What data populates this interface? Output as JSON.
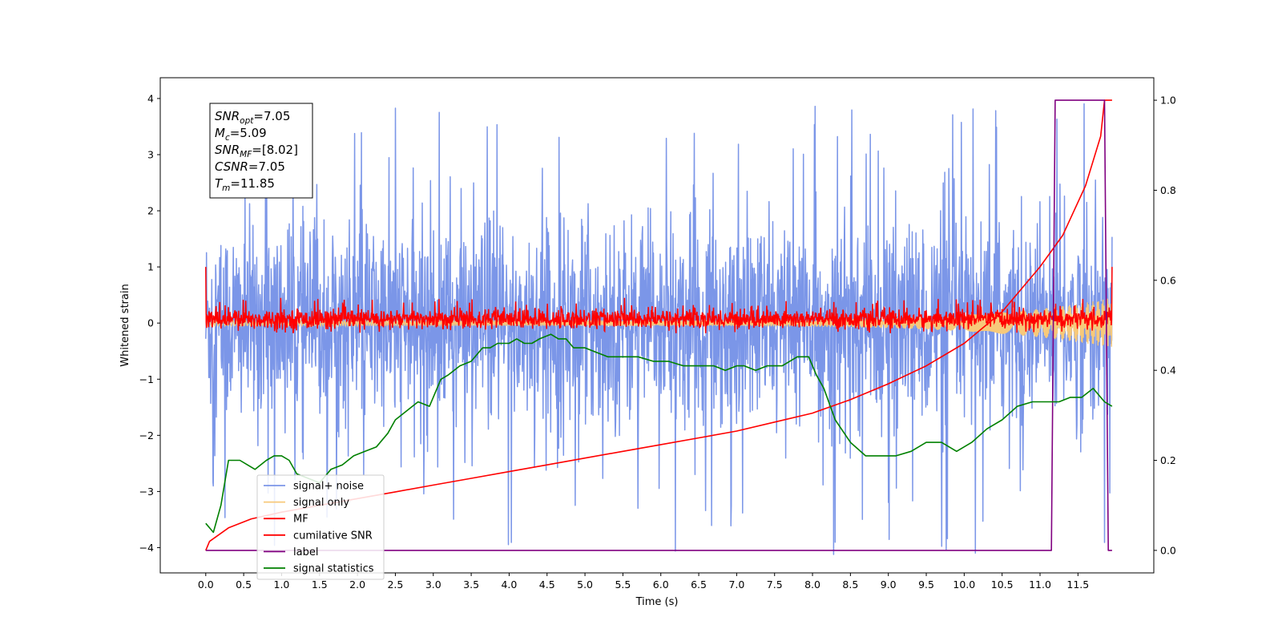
{
  "chart_data": {
    "type": "line",
    "title": "",
    "xlabel": "Time (s)",
    "ylabel": "Whitened strain",
    "y2label": "",
    "xlim": [
      -0.6,
      12.5
    ],
    "ylim": [
      -4.45,
      4.37
    ],
    "y2lim": [
      -0.05,
      1.05
    ],
    "x_ticks": [
      "0.0",
      "0.5",
      "1.0",
      "1.5",
      "2.0",
      "2.5",
      "3.0",
      "3.5",
      "4.0",
      "4.5",
      "5.0",
      "5.5",
      "6.0",
      "6.5",
      "7.0",
      "7.5",
      "8.0",
      "8.5",
      "9.0",
      "9.5",
      "10.0",
      "10.5",
      "11.0",
      "11.5"
    ],
    "y_ticks": [
      "4",
      "3",
      "2",
      "1",
      "0",
      "−1",
      "−2",
      "−3",
      "−4"
    ],
    "y2_ticks": [
      "1.0",
      "0.8",
      "0.6",
      "0.4",
      "0.2",
      "0.0"
    ],
    "grid": false,
    "legend_position": "lower-left",
    "annotation": {
      "lines": [
        {
          "base": "SNR",
          "sub": "opt",
          "value": "=7.05"
        },
        {
          "base": "M",
          "sub": "c",
          "value": "=5.09"
        },
        {
          "base": "SNR",
          "sub": "MF",
          "value": "=[8.02]"
        },
        {
          "base": "CSNR",
          "sub": "",
          "value": "=7.05"
        },
        {
          "base": "T",
          "sub": "m",
          "value": "=11.85"
        }
      ]
    },
    "series": [
      {
        "name": "signal+ noise",
        "color": "#7b96e8",
        "kind": "noise",
        "envelope_upper": 2.0,
        "envelope_lower": -2.1,
        "peak_max": 3.95,
        "trough_min": -4.15,
        "x_range": [
          0.0,
          11.95
        ]
      },
      {
        "name": "signal only",
        "color": "#f7c97a",
        "kind": "chirp",
        "amplitude_start": 0.05,
        "amplitude_end": 0.45,
        "x_range": [
          0.0,
          11.95
        ]
      },
      {
        "name": "MF",
        "color": "#ff0000",
        "kind": "noise",
        "envelope_upper": 0.3,
        "envelope_lower": -0.15,
        "peak_max": 0.45,
        "x_range": [
          0.0,
          11.95
        ],
        "endpoints_y": 1.0
      },
      {
        "name": "cumilative SNR",
        "color": "#ff0000",
        "axis": "right",
        "x": [
          0.0,
          0.05,
          0.3,
          0.6,
          1.0,
          1.5,
          2.0,
          2.5,
          3.0,
          3.5,
          4.0,
          4.5,
          5.0,
          5.5,
          6.0,
          6.5,
          7.0,
          7.5,
          8.0,
          8.5,
          9.0,
          9.5,
          10.0,
          10.5,
          11.0,
          11.3,
          11.6,
          11.8,
          11.85,
          11.95
        ],
        "values": [
          0.0,
          0.02,
          0.05,
          0.07,
          0.085,
          0.1,
          0.115,
          0.13,
          0.145,
          0.16,
          0.175,
          0.19,
          0.205,
          0.22,
          0.235,
          0.25,
          0.265,
          0.285,
          0.305,
          0.335,
          0.37,
          0.41,
          0.46,
          0.53,
          0.63,
          0.7,
          0.81,
          0.92,
          1.0,
          1.0
        ]
      },
      {
        "name": "label",
        "color": "#800080",
        "axis": "right",
        "x": [
          0.0,
          11.15,
          11.2,
          11.85,
          11.9,
          11.95
        ],
        "values": [
          0.0,
          0.0,
          1.0,
          1.0,
          0.0,
          0.0
        ]
      },
      {
        "name": "signal statistics",
        "color": "#008000",
        "axis": "right",
        "x": [
          0.0,
          0.1,
          0.2,
          0.3,
          0.45,
          0.55,
          0.65,
          0.8,
          0.9,
          1.0,
          1.1,
          1.2,
          1.35,
          1.5,
          1.65,
          1.8,
          1.95,
          2.1,
          2.25,
          2.4,
          2.5,
          2.65,
          2.8,
          2.95,
          3.1,
          3.2,
          3.35,
          3.5,
          3.65,
          3.75,
          3.85,
          4.0,
          4.1,
          4.2,
          4.3,
          4.4,
          4.55,
          4.65,
          4.75,
          4.85,
          5.0,
          5.15,
          5.3,
          5.5,
          5.7,
          5.9,
          6.1,
          6.3,
          6.5,
          6.7,
          6.85,
          7.0,
          7.1,
          7.25,
          7.4,
          7.6,
          7.8,
          7.95,
          8.05,
          8.15,
          8.3,
          8.5,
          8.7,
          8.9,
          9.1,
          9.3,
          9.5,
          9.7,
          9.9,
          10.1,
          10.3,
          10.5,
          10.7,
          10.9,
          11.1,
          11.25,
          11.4,
          11.55,
          11.7,
          11.85,
          11.95
        ],
        "values": [
          0.06,
          0.04,
          0.1,
          0.2,
          0.2,
          0.19,
          0.18,
          0.2,
          0.21,
          0.21,
          0.2,
          0.17,
          0.16,
          0.15,
          0.18,
          0.19,
          0.21,
          0.22,
          0.23,
          0.26,
          0.29,
          0.31,
          0.33,
          0.32,
          0.38,
          0.39,
          0.41,
          0.42,
          0.45,
          0.45,
          0.46,
          0.46,
          0.47,
          0.46,
          0.46,
          0.47,
          0.48,
          0.47,
          0.47,
          0.45,
          0.45,
          0.44,
          0.43,
          0.43,
          0.43,
          0.42,
          0.42,
          0.41,
          0.41,
          0.41,
          0.4,
          0.41,
          0.41,
          0.4,
          0.41,
          0.41,
          0.43,
          0.43,
          0.39,
          0.36,
          0.29,
          0.24,
          0.21,
          0.21,
          0.21,
          0.22,
          0.24,
          0.24,
          0.22,
          0.24,
          0.27,
          0.29,
          0.32,
          0.33,
          0.33,
          0.33,
          0.34,
          0.34,
          0.36,
          0.33,
          0.32
        ]
      }
    ]
  }
}
